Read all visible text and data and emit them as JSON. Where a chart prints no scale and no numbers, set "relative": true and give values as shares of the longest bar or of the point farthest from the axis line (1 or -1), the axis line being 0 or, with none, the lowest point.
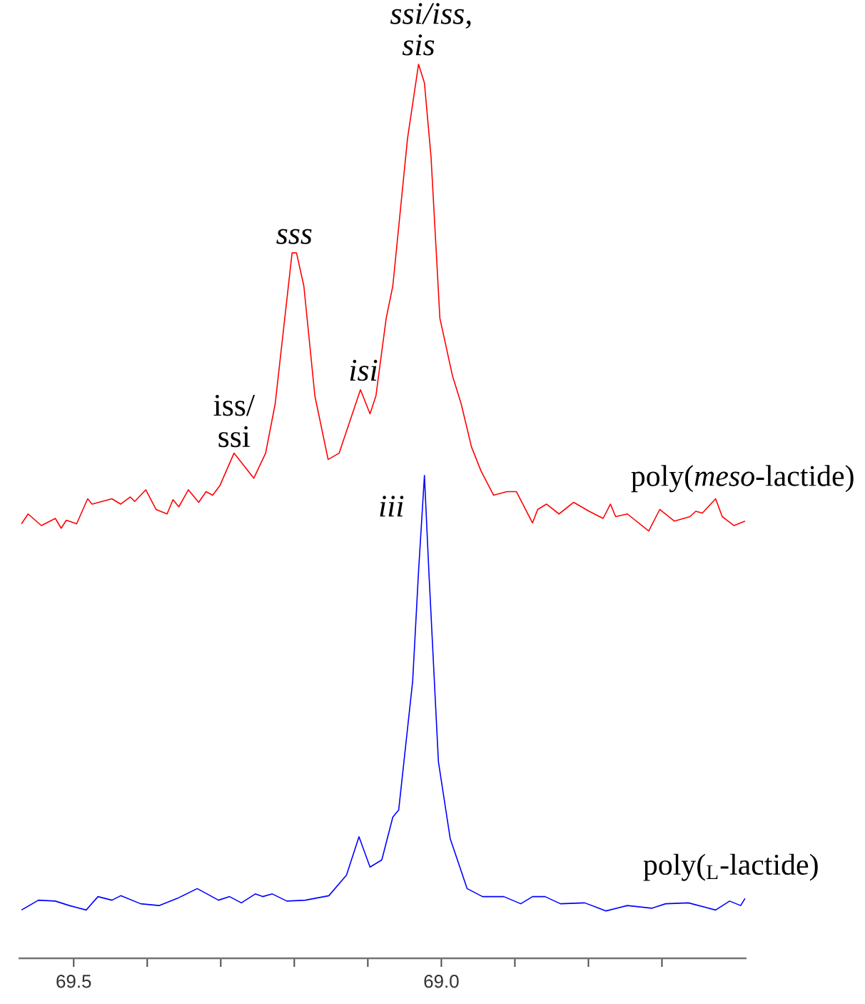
{
  "chart_data": {
    "type": "line",
    "relative": true,
    "xlim": [
      69.575,
      68.585
    ],
    "xticks": [
      69.5,
      {
        "value": 69.4,
        "label": null
      },
      {
        "value": 69.3,
        "label": null
      },
      {
        "value": 69.2,
        "label": null
      },
      {
        "value": 69.1,
        "label": null
      },
      {
        "value": 69.0,
        "label": "69.0"
      },
      {
        "value": 68.9,
        "label": null
      },
      {
        "value": 68.8,
        "label": null
      },
      {
        "value": 68.7,
        "label": null
      }
    ],
    "series": [
      {
        "name": "poly(*meso*-lactide)",
        "color": "#ff0000",
        "x": [
          69.571,
          69.562,
          69.544,
          69.525,
          69.517,
          69.51,
          69.496,
          69.481,
          69.475,
          69.448,
          69.436,
          69.423,
          69.417,
          69.402,
          69.388,
          69.373,
          69.365,
          69.357,
          69.344,
          69.33,
          69.32,
          69.311,
          69.301,
          69.282,
          69.255,
          69.239,
          69.226,
          69.203,
          69.197,
          69.187,
          69.172,
          69.154,
          69.139,
          69.11,
          69.097,
          69.089,
          69.075,
          69.066,
          69.046,
          69.031,
          69.023,
          69.014,
          69.002,
          68.985,
          68.973,
          68.959,
          68.946,
          68.929,
          68.911,
          68.898,
          68.876,
          68.869,
          68.857,
          68.84,
          68.82,
          68.799,
          68.78,
          68.77,
          68.763,
          68.747,
          68.718,
          68.703,
          68.683,
          68.662,
          68.654,
          68.645,
          68.627,
          68.618,
          68.602,
          68.587
        ],
        "values": [
          0.486,
          0.497,
          0.484,
          0.492,
          0.481,
          0.49,
          0.486,
          0.514,
          0.508,
          0.514,
          0.508,
          0.516,
          0.511,
          0.524,
          0.502,
          0.497,
          0.513,
          0.505,
          0.524,
          0.51,
          0.522,
          0.518,
          0.529,
          0.565,
          0.537,
          0.565,
          0.62,
          0.789,
          0.789,
          0.752,
          0.629,
          0.558,
          0.565,
          0.636,
          0.609,
          0.629,
          0.716,
          0.752,
          0.917,
          1.0,
          0.979,
          0.896,
          0.716,
          0.652,
          0.62,
          0.572,
          0.545,
          0.518,
          0.522,
          0.522,
          0.487,
          0.502,
          0.508,
          0.497,
          0.51,
          0.5,
          0.492,
          0.508,
          0.494,
          0.497,
          0.478,
          0.502,
          0.489,
          0.494,
          0.5,
          0.498,
          0.514,
          0.494,
          0.484,
          0.489
        ]
      },
      {
        "name": "poly($_{L}$-lactide)",
        "color": "#0000ff",
        "x": [
          69.571,
          69.548,
          69.525,
          69.506,
          69.483,
          69.467,
          69.448,
          69.436,
          69.409,
          69.384,
          69.359,
          69.332,
          69.303,
          69.288,
          69.272,
          69.253,
          69.243,
          69.23,
          69.21,
          69.185,
          69.153,
          69.129,
          69.112,
          69.097,
          69.081,
          69.066,
          69.058,
          69.039,
          69.031,
          69.023,
          69.017,
          69.004,
          68.988,
          68.965,
          68.944,
          68.915,
          68.892,
          68.876,
          68.859,
          68.838,
          68.805,
          68.776,
          68.747,
          68.714,
          68.695,
          68.664,
          68.627,
          68.608,
          68.593,
          68.587
        ],
        "values": [
          0.054,
          0.065,
          0.064,
          0.059,
          0.054,
          0.069,
          0.065,
          0.07,
          0.061,
          0.059,
          0.067,
          0.078,
          0.065,
          0.069,
          0.062,
          0.072,
          0.069,
          0.072,
          0.064,
          0.065,
          0.07,
          0.093,
          0.136,
          0.102,
          0.11,
          0.158,
          0.166,
          0.31,
          0.433,
          0.54,
          0.433,
          0.22,
          0.134,
          0.078,
          0.069,
          0.069,
          0.061,
          0.069,
          0.069,
          0.061,
          0.062,
          0.053,
          0.059,
          0.056,
          0.061,
          0.062,
          0.054,
          0.064,
          0.059,
          0.067
        ]
      }
    ],
    "annotations": [
      {
        "text": "ssi/iss, sis",
        "x": 69.031,
        "y": 1.0
      },
      {
        "text": "sss",
        "x": 69.2,
        "y": 0.789
      },
      {
        "text": "isi",
        "x": 69.11,
        "y": 0.636
      },
      {
        "text": "iss/ ssi",
        "x": 69.282,
        "y": 0.565
      },
      {
        "text": "iii",
        "x": 69.023,
        "y": 0.54
      }
    ]
  }
}
